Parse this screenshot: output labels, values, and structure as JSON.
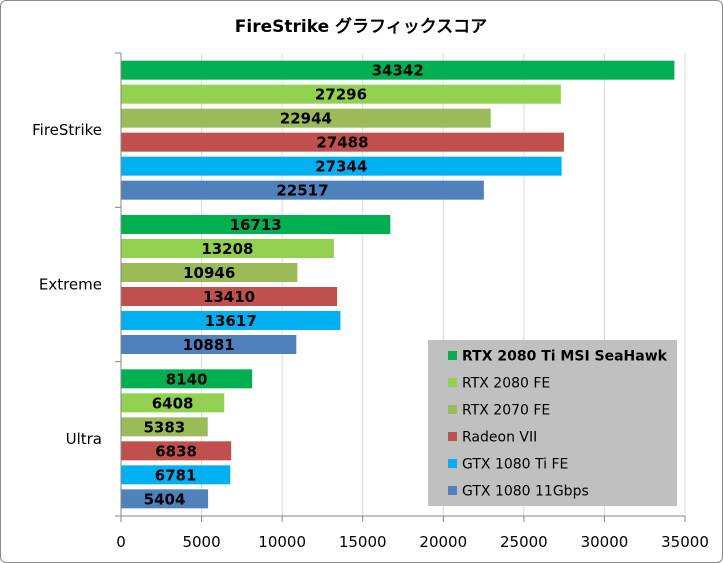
{
  "chart_data": {
    "type": "bar",
    "orientation": "horizontal",
    "title": "FireStrike グラフィックスコア",
    "categories": [
      "FireStrike",
      "Extreme",
      "Ultra"
    ],
    "series": [
      {
        "name": "RTX 2080 Ti MSI SeaHawk",
        "color": "#00b050",
        "values": [
          34342,
          16713,
          8140
        ]
      },
      {
        "name": "RTX 2080 FE",
        "color": "#92d050",
        "values": [
          27296,
          13208,
          6408
        ]
      },
      {
        "name": "RTX 2070 FE",
        "color": "#9bbb59",
        "values": [
          22944,
          10946,
          5383
        ]
      },
      {
        "name": "Radeon VII",
        "color": "#c0504d",
        "values": [
          27488,
          13410,
          6838
        ]
      },
      {
        "name": "GTX 1080 Ti FE",
        "color": "#00b0f0",
        "values": [
          27344,
          13617,
          6781
        ]
      },
      {
        "name": "GTX 1080 11Gbps",
        "color": "#4f81bd",
        "values": [
          22517,
          10881,
          5404
        ]
      }
    ],
    "xlim": [
      0,
      35000
    ],
    "xticks": [
      0,
      5000,
      10000,
      15000,
      20000,
      25000,
      30000,
      35000
    ],
    "grid": true,
    "legend_position": "bottom-right",
    "legend_background": "#c0c0c0",
    "gridline_color": "#d9d9d9"
  }
}
